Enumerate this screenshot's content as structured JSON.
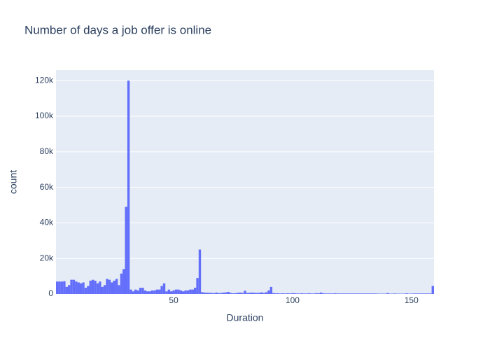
{
  "chart_data": {
    "type": "histogram",
    "title": "Number of days a job offer is online",
    "x_label": "Duration",
    "y_label": "count",
    "color": "#636efa",
    "grid": true,
    "xlim": [
      0.5,
      159.5
    ],
    "xticks": [
      50,
      100,
      150
    ],
    "ylim": [
      0,
      126000
    ],
    "yticks": [
      0,
      {
        "value": 20000,
        "label": "20k"
      },
      {
        "value": 40000,
        "label": "40k"
      },
      {
        "value": 60000,
        "label": "60k"
      },
      {
        "value": 80000,
        "label": "80k"
      },
      {
        "value": 100000,
        "label": "100k"
      },
      {
        "value": 120000,
        "label": "120k"
      }
    ],
    "bins": [
      0.5,
      1.5,
      2.5,
      3.5,
      4.5,
      5.5,
      6.5,
      7.5,
      8.5,
      9.5,
      10.5,
      11.5,
      12.5,
      13.5,
      14.5,
      15.5,
      16.5,
      17.5,
      18.5,
      19.5,
      20.5,
      21.5,
      22.5,
      23.5,
      24.5,
      25.5,
      26.5,
      27.5,
      28.5,
      29.5,
      30.5,
      31.5,
      32.5,
      33.5,
      34.5,
      35.5,
      36.5,
      37.5,
      38.5,
      39.5,
      40.5,
      41.5,
      42.5,
      43.5,
      44.5,
      45.5,
      46.5,
      47.5,
      48.5,
      49.5,
      50.5,
      51.5,
      52.5,
      53.5,
      54.5,
      55.5,
      56.5,
      57.5,
      58.5,
      59.5,
      60.5,
      61.5,
      62.5,
      63.5,
      64.5,
      65.5,
      66.5,
      67.5,
      68.5,
      69.5,
      70.5,
      71.5,
      72.5,
      73.5,
      74.5,
      75.5,
      76.5,
      77.5,
      78.5,
      79.5,
      80.5,
      81.5,
      82.5,
      83.5,
      84.5,
      85.5,
      86.5,
      87.5,
      88.5,
      89.5,
      90.5,
      91.5,
      92.5,
      93.5,
      94.5,
      95.5,
      96.5,
      97.5,
      98.5,
      99.5,
      100.5,
      101.5,
      102.5,
      103.5,
      104.5,
      105.5,
      106.5,
      107.5,
      108.5,
      109.5,
      110.5,
      111.5,
      112.5,
      113.5,
      114.5,
      115.5,
      116.5,
      117.5,
      118.5,
      119.5,
      120.5,
      121.5,
      122.5,
      123.5,
      124.5,
      125.5,
      126.5,
      127.5,
      128.5,
      129.5,
      130.5,
      131.5,
      132.5,
      133.5,
      134.5,
      135.5,
      136.5,
      137.5,
      138.5,
      139.5,
      140.5,
      141.5,
      142.5,
      143.5,
      144.5,
      145.5,
      146.5,
      147.5,
      148.5,
      149.5,
      150.5,
      151.5,
      152.5,
      153.5,
      154.5,
      155.5,
      156.5,
      157.5,
      158.5,
      159.5
    ],
    "values": [
      7000,
      7000,
      7000,
      7200,
      4000,
      5000,
      8000,
      8000,
      7000,
      6500,
      6000,
      6500,
      3500,
      4500,
      7500,
      8000,
      7500,
      6000,
      7000,
      4000,
      5000,
      8500,
      8000,
      6500,
      7500,
      8500,
      5000,
      11500,
      14000,
      49000,
      120000,
      2500,
      1500,
      2500,
      2000,
      3500,
      3500,
      2000,
      1500,
      1500,
      2000,
      2000,
      2500,
      2500,
      4500,
      6000,
      1500,
      2500,
      1500,
      2000,
      2500,
      2500,
      2000,
      1500,
      2000,
      2000,
      2500,
      2500,
      3500,
      9000,
      25000,
      1000,
      800,
      700,
      700,
      600,
      500,
      800,
      500,
      600,
      800,
      900,
      1200,
      600,
      400,
      500,
      700,
      800,
      600,
      1800,
      600,
      700,
      800,
      700,
      600,
      700,
      900,
      600,
      1000,
      2000,
      4000,
      500,
      400,
      400,
      300,
      400,
      300,
      400,
      300,
      500,
      400,
      300,
      300,
      400,
      300,
      300,
      400,
      300,
      300,
      500,
      400,
      800,
      400,
      300,
      300,
      300,
      300,
      400,
      300,
      300,
      300,
      300,
      300,
      300,
      300,
      300,
      300,
      300,
      300,
      300,
      300,
      300,
      300,
      300,
      300,
      200,
      200,
      200,
      200,
      500,
      200,
      200,
      300,
      200,
      200,
      200,
      200,
      400,
      200,
      200,
      300,
      300,
      300,
      300,
      300,
      300,
      300,
      300,
      4500
    ]
  }
}
